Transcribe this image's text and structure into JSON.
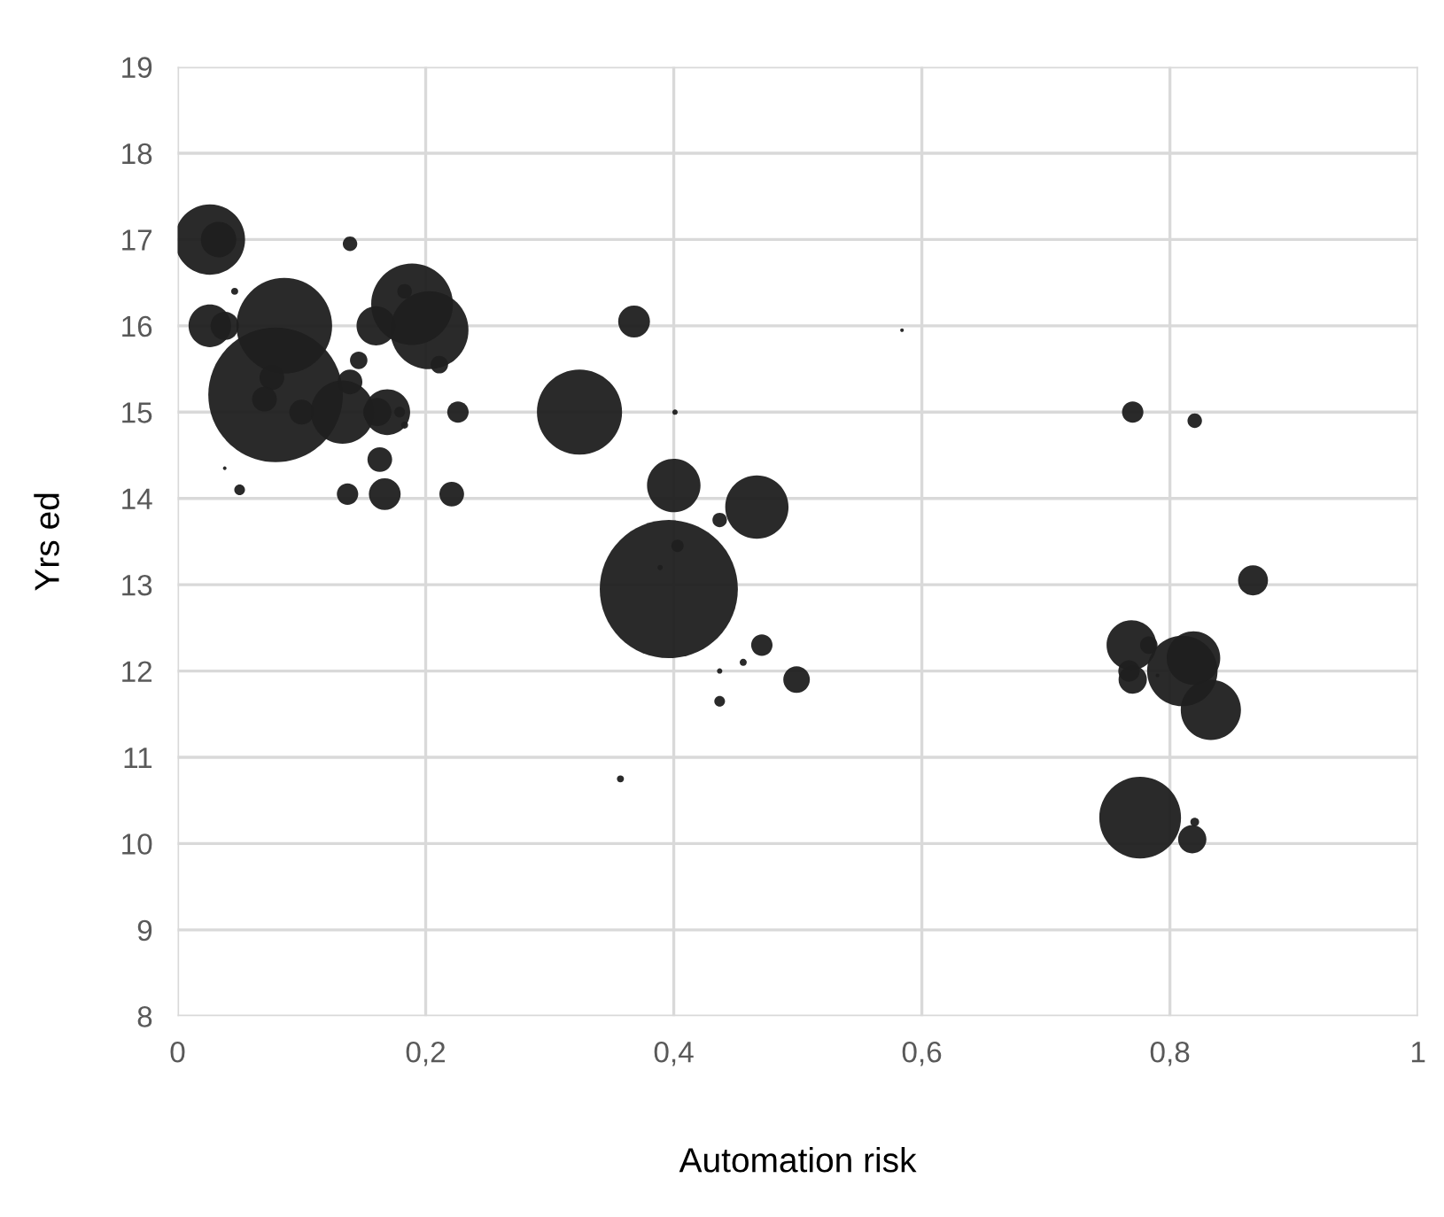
{
  "chart_data": {
    "type": "bubble",
    "xlabel": "Automation risk",
    "ylabel": "Yrs ed",
    "color": "#1f1f1f",
    "x": [
      0.026,
      0.033,
      0.046,
      0.026,
      0.038,
      0.079,
      0.086,
      0.076,
      0.07,
      0.1,
      0.133,
      0.139,
      0.146,
      0.139,
      0.161,
      0.169,
      0.179,
      0.183,
      0.163,
      0.167,
      0.137,
      0.221,
      0.226,
      0.16,
      0.203,
      0.189,
      0.183,
      0.211,
      0.038,
      0.05,
      0.368,
      0.584,
      0.324,
      0.401,
      0.4,
      0.467,
      0.437,
      0.403,
      0.389,
      0.396,
      0.471,
      0.499,
      0.456,
      0.437,
      0.437,
      0.357,
      0.77,
      0.82,
      0.867,
      0.769,
      0.77,
      0.783,
      0.81,
      0.819,
      0.833,
      0.79,
      0.776,
      0.818,
      0.82,
      0.767
    ],
    "values": [
      17.0,
      17.0,
      16.4,
      16.0,
      16.0,
      15.2,
      16.0,
      15.4,
      15.15,
      15.0,
      15.0,
      15.35,
      15.6,
      16.95,
      15.0,
      15.0,
      15.0,
      14.85,
      14.45,
      14.05,
      14.05,
      14.05,
      15.0,
      16.0,
      15.95,
      16.25,
      16.4,
      15.55,
      14.35,
      14.1,
      16.05,
      15.95,
      15.0,
      15.0,
      14.15,
      13.9,
      13.75,
      13.45,
      13.2,
      12.95,
      12.3,
      11.9,
      12.1,
      12.0,
      11.65,
      10.75,
      15.0,
      14.9,
      13.05,
      12.3,
      11.9,
      12.3,
      12.0,
      12.15,
      11.55,
      11.95,
      10.3,
      10.05,
      10.25,
      12.0
    ],
    "sizes": [
      0.26,
      0.066,
      0.0026,
      0.095,
      0.042,
      0.95,
      0.48,
      0.032,
      0.032,
      0.032,
      0.21,
      0.032,
      0.016,
      0.011,
      0.042,
      0.11,
      0.006,
      0.0026,
      0.032,
      0.053,
      0.024,
      0.032,
      0.024,
      0.08,
      0.32,
      0.35,
      0.011,
      0.016,
      0.0007,
      0.006,
      0.053,
      0.0007,
      0.38,
      0.0015,
      0.15,
      0.21,
      0.011,
      0.008,
      0.0015,
      1,
      0.024,
      0.037,
      0.0026,
      0.0015,
      0.006,
      0.0026,
      0.024,
      0.011,
      0.047,
      0.13,
      0.042,
      0.016,
      0.26,
      0.15,
      0.19,
      0.0007,
      0.35,
      0.042,
      0.004,
      0.024
    ],
    "xlim": [
      0,
      1
    ],
    "xticks": [
      0,
      {
        "value": 0.2,
        "label": "0,2"
      },
      {
        "value": 0.4,
        "label": "0,4"
      },
      {
        "value": 0.6,
        "label": "0,6"
      },
      {
        "value": 0.8,
        "label": "0,8"
      },
      1
    ],
    "ylim": [
      8,
      19
    ],
    "yticks": [
      8,
      9,
      10,
      11,
      12,
      13,
      14,
      15,
      16,
      17,
      18,
      19
    ],
    "grid": true
  }
}
